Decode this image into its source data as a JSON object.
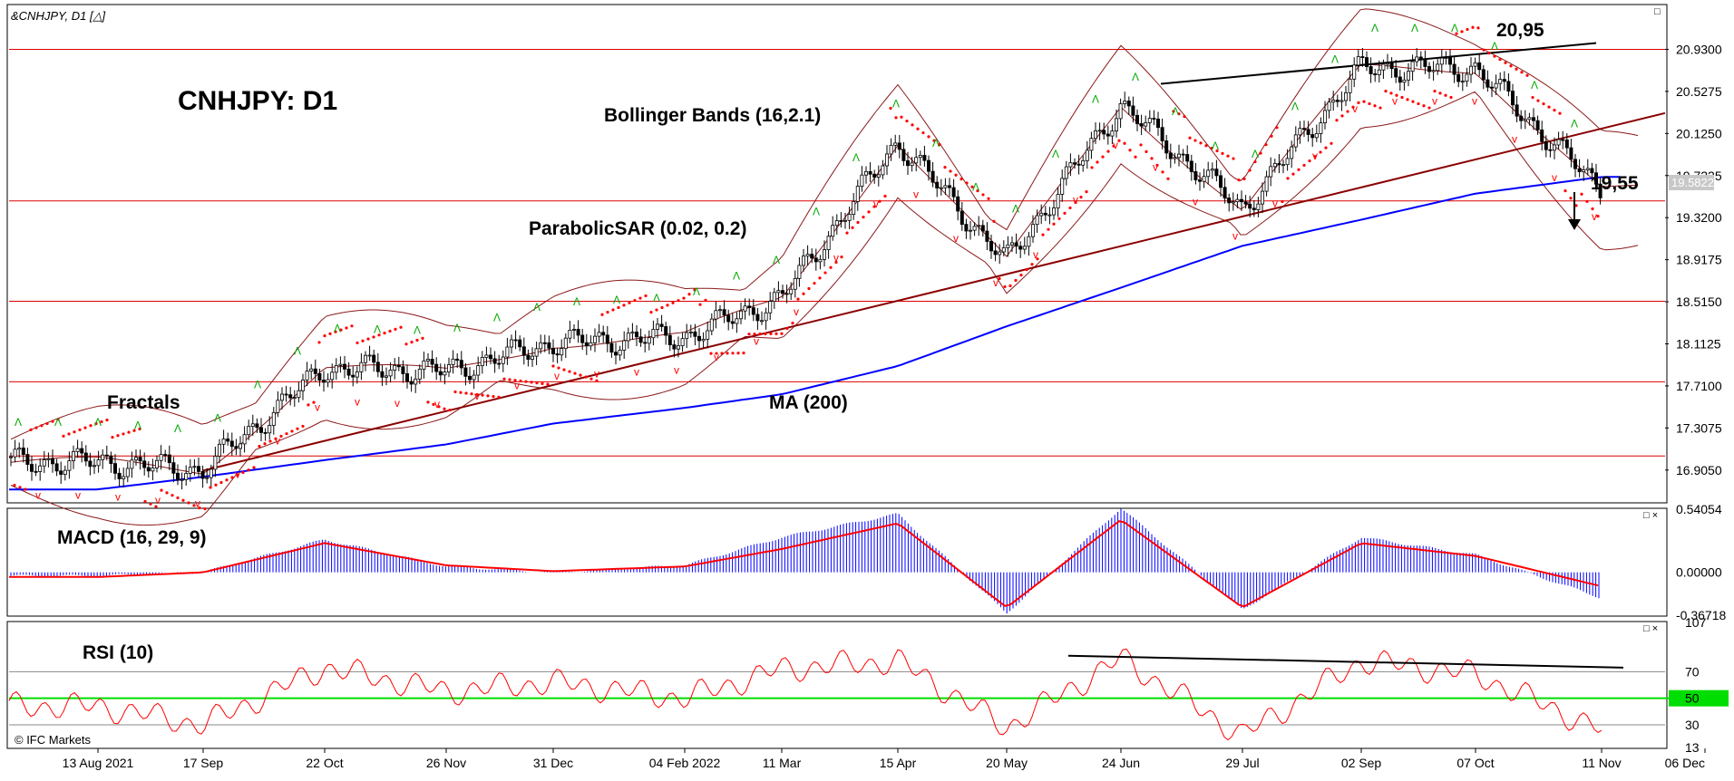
{
  "window": {
    "symbol_caption": "&CNHJPY, D1 [△]",
    "watermark": "© IFC Markets",
    "corner_buttons": [
      "□",
      "□ ×",
      "□ ×"
    ]
  },
  "colors": {
    "price_line": "#000000",
    "ma200": "#0000ff",
    "bollinger": "#8b1a1a",
    "sar": "#ff0000",
    "fractal_up": "#00aa00",
    "fractal_down": "#ff0000",
    "hlines": "#dd0000",
    "trendline": "#8b0000",
    "macd_hist": "#0000ff",
    "macd_signal": "#ff0000",
    "rsi_line": "#ff0000",
    "rsi_mid": "#00dd00"
  },
  "chart_data": [
    {
      "type": "candlestick",
      "title": "CNHJPY: D1",
      "instrument": "CNHJPY",
      "timeframe": "D1",
      "x_tick_labels": [
        "13 Aug 2021",
        "17 Sep",
        "22 Oct",
        "26 Nov",
        "31 Dec",
        "04 Feb 2022",
        "11 Mar",
        "15 Apr",
        "20 May",
        "24 Jun",
        "29 Jul",
        "02 Sep",
        "07 Oct",
        "11 Nov",
        "06 Dec"
      ],
      "y_tick_labels": [
        "20.9300",
        "20.5275",
        "20.1250",
        "19.7225",
        "19.3200",
        "18.9175",
        "18.5150",
        "18.1125",
        "17.7100",
        "17.3075",
        "16.9050"
      ],
      "ylim": [
        16.6,
        21.35
      ],
      "current_price_label": "19.5822",
      "current_price": 19.5822,
      "horizontal_levels": [
        20.93,
        19.48,
        18.52,
        17.75,
        17.04
      ],
      "price_path": [
        [
          "13 Aug 2021",
          16.98
        ],
        [
          "17 Sep",
          16.9
        ],
        [
          "22 Oct",
          17.88
        ],
        [
          "26 Nov",
          17.85
        ],
        [
          "31 Dec",
          18.12
        ],
        [
          "04 Feb 2022",
          18.18
        ],
        [
          "11 Mar",
          18.55
        ],
        [
          "15 Apr",
          20.05
        ],
        [
          "20 May",
          18.9
        ],
        [
          "24 Jun",
          20.4
        ],
        [
          "29 Jul",
          19.4
        ],
        [
          "02 Sep",
          20.75
        ],
        [
          "07 Oct",
          20.75
        ],
        [
          "11 Nov",
          19.58
        ]
      ],
      "ma200_path": [
        [
          "13 Aug 2021",
          16.72
        ],
        [
          "17 Sep",
          16.84
        ],
        [
          "22 Oct",
          17.0
        ],
        [
          "26 Nov",
          17.15
        ],
        [
          "31 Dec",
          17.35
        ],
        [
          "04 Feb 2022",
          17.5
        ],
        [
          "11 Mar",
          17.63
        ],
        [
          "15 Apr",
          17.9
        ],
        [
          "20 May",
          18.28
        ],
        [
          "24 Jun",
          18.65
        ],
        [
          "29 Jul",
          19.05
        ],
        [
          "02 Sep",
          19.3
        ],
        [
          "07 Oct",
          19.55
        ],
        [
          "11 Nov",
          19.71
        ]
      ],
      "annotations": [
        {
          "text": "Bollinger Bands (16,2.1)"
        },
        {
          "text": "ParabolicSAR (0.02, 0.2)"
        },
        {
          "text": "Fractals"
        },
        {
          "text": "MA (200)"
        },
        {
          "text": "20,95",
          "value": 20.95
        },
        {
          "text": "19,55",
          "value": 19.55
        }
      ]
    },
    {
      "type": "bar",
      "title": "MACD (16, 29, 9)",
      "y_tick_labels": [
        "0.54054",
        "0.00000",
        "-0.36718"
      ],
      "ylim": [
        -0.36718,
        0.54054
      ],
      "histogram_path": [
        [
          "13 Aug 2021",
          -0.03
        ],
        [
          "17 Sep",
          0.0
        ],
        [
          "22 Oct",
          0.28
        ],
        [
          "26 Nov",
          0.05
        ],
        [
          "31 Dec",
          0.0
        ],
        [
          "04 Feb 2022",
          0.06
        ],
        [
          "11 Mar",
          0.3
        ],
        [
          "15 Apr",
          0.5
        ],
        [
          "20 May",
          -0.35
        ],
        [
          "24 Jun",
          0.55
        ],
        [
          "29 Jul",
          -0.32
        ],
        [
          "02 Sep",
          0.3
        ],
        [
          "07 Oct",
          0.15
        ],
        [
          "11 Nov",
          -0.22
        ]
      ],
      "signal_path": [
        [
          "13 Aug 2021",
          -0.04
        ],
        [
          "17 Sep",
          0.0
        ],
        [
          "22 Oct",
          0.25
        ],
        [
          "26 Nov",
          0.06
        ],
        [
          "31 Dec",
          0.01
        ],
        [
          "04 Feb 2022",
          0.05
        ],
        [
          "11 Mar",
          0.2
        ],
        [
          "15 Apr",
          0.42
        ],
        [
          "20 May",
          -0.3
        ],
        [
          "24 Jun",
          0.45
        ],
        [
          "29 Jul",
          -0.3
        ],
        [
          "02 Sep",
          0.25
        ],
        [
          "07 Oct",
          0.14
        ],
        [
          "11 Nov",
          -0.12
        ]
      ]
    },
    {
      "type": "line",
      "title": "RSI (10)",
      "y_tick_labels": [
        "107",
        "70",
        "50",
        "30",
        "13"
      ],
      "ylim": [
        13,
        107
      ],
      "mid_level": 50,
      "rsi_path": [
        [
          "13 Aug 2021",
          44
        ],
        [
          "17 Sep",
          30
        ],
        [
          "22 Oct",
          73
        ],
        [
          "26 Nov",
          55
        ],
        [
          "31 Dec",
          62
        ],
        [
          "04 Feb 2022",
          50
        ],
        [
          "11 Mar",
          72
        ],
        [
          "15 Apr",
          78
        ],
        [
          "20 May",
          28
        ],
        [
          "24 Jun",
          80
        ],
        [
          "29 Jul",
          22
        ],
        [
          "02 Sep",
          78
        ],
        [
          "07 Oct",
          68
        ],
        [
          "11 Nov",
          26
        ]
      ]
    }
  ]
}
